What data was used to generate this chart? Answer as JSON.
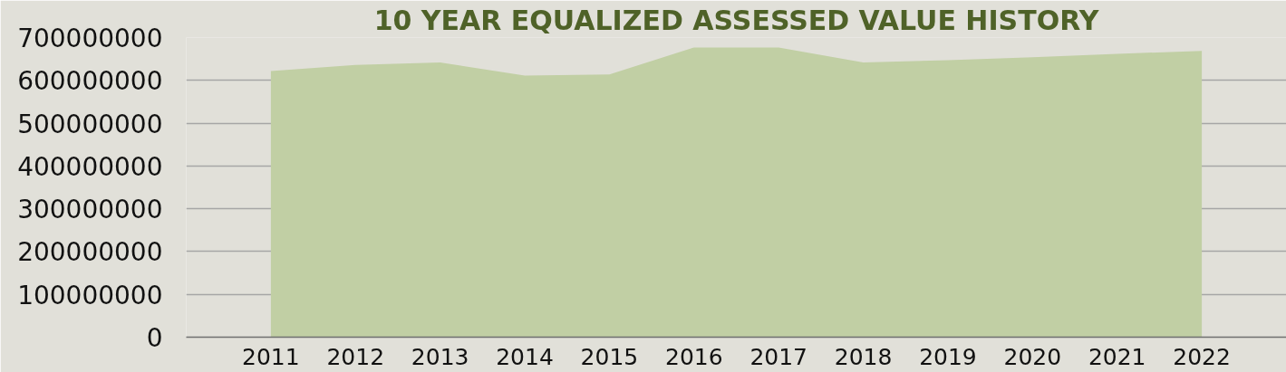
{
  "chart_data": {
    "type": "area",
    "title": "10 YEAR EQUALIZED ASSESSED VALUE HISTORY",
    "categories": [
      "2011",
      "2012",
      "2013",
      "2014",
      "2015",
      "2016",
      "2017",
      "2018",
      "2019",
      "2020",
      "2021",
      "2022"
    ],
    "series": [
      {
        "color": "#c1cfa4",
        "values": [
          622000000,
          636000000,
          642000000,
          611000000,
          614000000,
          677000000,
          677000000,
          642000000,
          647000000,
          654000000,
          662000000,
          669000000
        ]
      }
    ],
    "ylim": [
      0,
      700000000
    ],
    "yticks": [
      0,
      100000000,
      200000000,
      300000000,
      400000000,
      500000000,
      600000000,
      700000000
    ],
    "grid": "y"
  }
}
